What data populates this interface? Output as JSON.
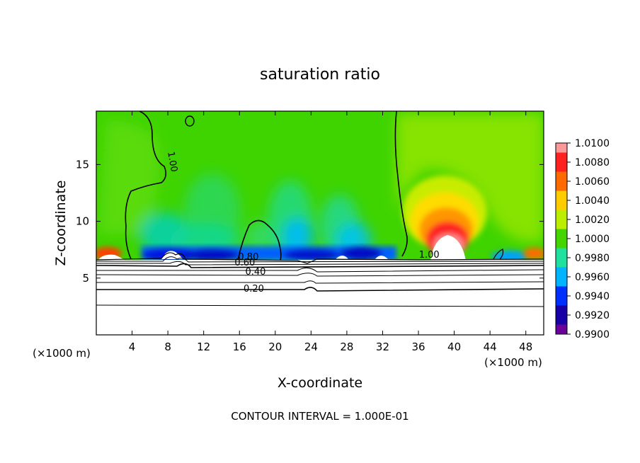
{
  "chart_data": {
    "type": "heatmap",
    "title": "saturation ratio",
    "xlabel": "X-coordinate",
    "ylabel": "Z-coordinate",
    "x_unit": "(×1000 m)",
    "z_unit": "(×1000 m)",
    "xlim": [
      0,
      50
    ],
    "ylim": [
      0,
      19.7
    ],
    "x_ticks": [
      "4",
      "8",
      "12",
      "16",
      "20",
      "24",
      "28",
      "32",
      "36",
      "40",
      "44",
      "48"
    ],
    "y_ticks": [
      "5",
      "10",
      "15"
    ],
    "contour_interval_text": "CONTOUR INTERVAL = 1.000E-01",
    "colorbar": {
      "labels": [
        "1.0100",
        "1.0080",
        "1.0060",
        "1.0040",
        "1.0020",
        "1.0000",
        "0.9980",
        "0.9960",
        "0.9940",
        "0.9920",
        "0.9900"
      ],
      "colors": [
        "#ff9898",
        "#ff2020",
        "#ff6a00",
        "#ffcc00",
        "#bcee00",
        "#44d400",
        "#20e0a0",
        "#00b4ff",
        "#0030ff",
        "#1800a8",
        "#6a0098"
      ]
    },
    "contour_labels": [
      {
        "text": "1.00",
        "x": 8.2,
        "z": 15.2,
        "rot": 80
      },
      {
        "text": "1.00",
        "x": 37.2,
        "z": 6.8,
        "rot": 0
      },
      {
        "text": "0.80",
        "x": 17.0,
        "z": 6.6,
        "rot": 0
      },
      {
        "text": "0.60",
        "x": 16.6,
        "z": 6.1,
        "rot": 0
      },
      {
        "text": "0.40",
        "x": 17.8,
        "z": 5.3,
        "rot": 0
      },
      {
        "text": "0.20",
        "x": 17.6,
        "z": 3.8,
        "rot": 0
      }
    ],
    "boundary_layer_contours": [
      {
        "level": 0.9,
        "z": 6.9
      },
      {
        "level": 0.8,
        "z": 6.7
      },
      {
        "level": 0.7,
        "z": 6.5
      },
      {
        "level": 0.6,
        "z": 6.25
      },
      {
        "level": 0.5,
        "z": 5.9
      },
      {
        "level": 0.4,
        "z": 5.45
      },
      {
        "level": 0.3,
        "z": 4.9
      },
      {
        "level": 0.2,
        "z": 4.1
      },
      {
        "level": 0.1,
        "z": 2.6
      }
    ]
  }
}
